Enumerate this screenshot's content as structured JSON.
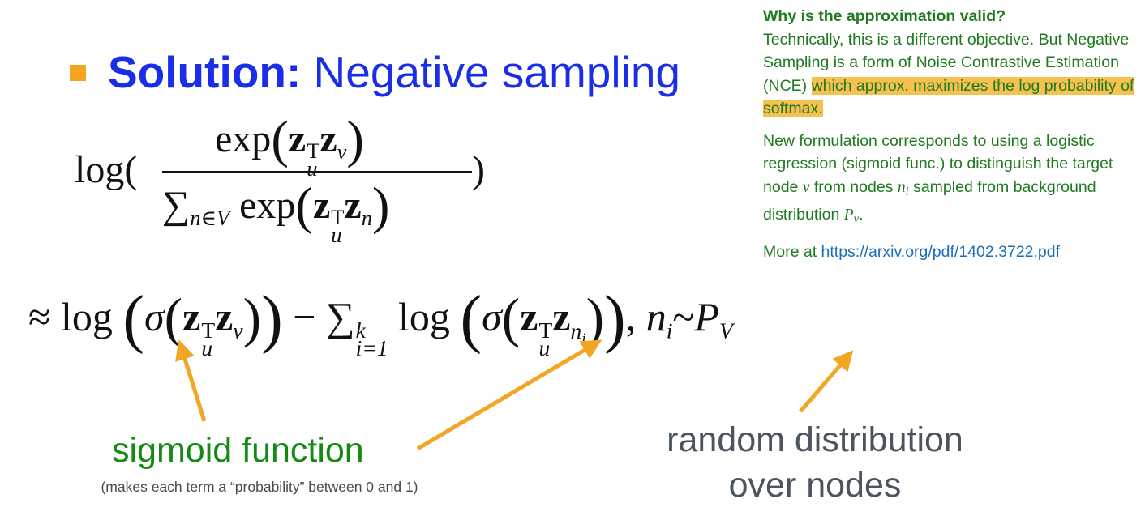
{
  "title": {
    "bold_text": "Solution:",
    "rest_text": " Negative sampling"
  },
  "formula1": {
    "log_open": "log(",
    "numerator_exp": "exp",
    "sum": "∑",
    "sum_sub": "n∈V",
    "denominator_exp": " exp",
    "close": ")"
  },
  "formula2": {
    "approx": "≈",
    "log": "log",
    "sigma": "σ",
    "minus": "−",
    "sum": "∑",
    "sum_sub": "i=1",
    "sum_sup": "k",
    "dist_var": "n",
    "dist_sub": "i",
    "tilde": "~",
    "dist_P": "P",
    "dist_V": "V"
  },
  "symbols": {
    "z": "z",
    "T": "T",
    "u": "u",
    "v": "v",
    "n": "n",
    "i": "i"
  },
  "side_panel": {
    "heading": "Why is the approximation valid?",
    "para1_plain": "Technically,  this is a different objective. But Negative Sampling is a form of Noise Contrastive Estimation (NCE) ",
    "para1_highlight": "which approx. maximizes the log probability of softmax.",
    "para2_a": "New formulation  corresponds to using a logistic regression (sigmoid func.) to distinguish the target node ",
    "para2_v": "v",
    "para2_b": " from nodes ",
    "para2_n": "n",
    "para2_i": "i",
    "para2_c": " sampled from background distribution ",
    "para2_P": "P",
    "para2_Pv": "v",
    "para2_end": ".",
    "more_prefix": "More at ",
    "more_link": "https://arxiv.org/pdf/1402.3722.pdf"
  },
  "labels": {
    "sigmoid": "sigmoid function",
    "sigmoid_note": "(makes each term a “probability” between 0 and 1)",
    "random": "random distribution over nodes"
  },
  "colors": {
    "title_blue": "#1a2ee8",
    "bullet_orange": "#f2a623",
    "arrow_orange": "#f2a623",
    "green": "#1f7a1f",
    "highlight": "#f7c150"
  }
}
